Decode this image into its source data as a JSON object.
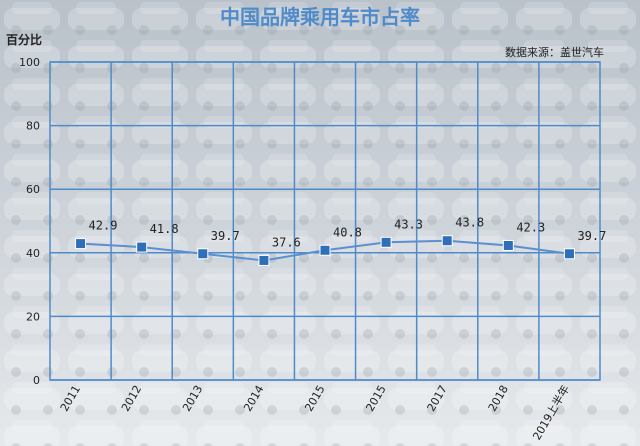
{
  "chart_data": {
    "type": "line",
    "title": "中国品牌乘用车市占率",
    "ylabel": "百分比",
    "source": "数据来源：盖世汽车",
    "categories": [
      "2011",
      "2012",
      "2013",
      "2014",
      "2015",
      "2015",
      "2017",
      "2018",
      "2019上半年"
    ],
    "series": [
      {
        "values": [
          42.9,
          41.8,
          39.7,
          37.6,
          40.8,
          43.3,
          43.8,
          42.3,
          39.7
        ]
      }
    ],
    "value_labels": [
      "42.9",
      "41.8",
      "39.7",
      "37.6",
      "40.8",
      "43.3",
      "43.8",
      "42.3",
      "39.7"
    ],
    "yticks": [
      "0",
      "20",
      "40",
      "60",
      "80",
      "100"
    ],
    "ylim": [
      0,
      100
    ],
    "grid": true,
    "colors": {
      "title": "#4f8bc9",
      "line": "#5b8fd0",
      "marker": "#2f6fba",
      "grid": "#4f8bc9",
      "text": "#222222",
      "background_top": "#bcc4cc",
      "background_bottom": "#e4e8ec"
    }
  }
}
